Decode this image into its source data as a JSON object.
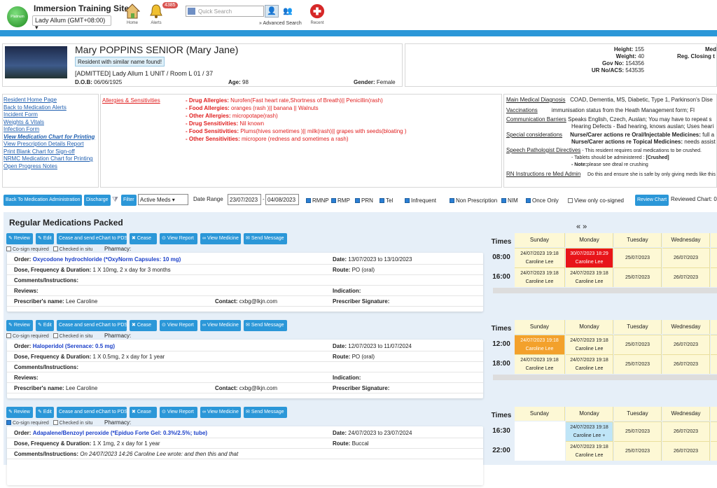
{
  "header": {
    "site_title": "Immersion Training Site",
    "logo_text": "Platinum",
    "timezone": "Lady Allum (GMT+08:00)",
    "nav": {
      "home": "Home",
      "alerts": "Alerts",
      "alerts_badge": "4385",
      "recent": "Recent"
    },
    "search_placeholder": "Quick Search",
    "advanced": "» Advanced Search"
  },
  "resident": {
    "name": "Mary POPPINS SENIOR (Mary Jane)",
    "similar": "Resident with similar name found!",
    "admission": "[ADMITTED] Lady Allum 1 UNIT / Room L 01 / 37",
    "dob_label": "D.O.B:",
    "dob": "06/06/1925",
    "age_label": "Age:",
    "age": "98",
    "gender_label": "Gender:",
    "gender": "Female",
    "height_label": "Height:",
    "height": "155",
    "weight_label": "Weight:",
    "weight": "40",
    "gov_label": "Gov No:",
    "gov": "154356",
    "ur_label": "UR No/ACS:",
    "ur": "543535",
    "r1": "Med",
    "r2": "Reg. Closing t"
  },
  "links": [
    "Resident Home Page",
    "Back to Medication Alerts",
    "Incident Form",
    "Weights & Vitals",
    "Infection Form",
    "View Medication Chart for Printing",
    "View Prescription Details Report",
    "Print Blank Chart for Sign-off",
    "NRMC Medication Chart for Printing",
    "Open Progress Notes"
  ],
  "allergies": {
    "title": "Allergies & Sensitivities",
    "lines": [
      [
        "- Drug Allergies:",
        " Nurofen(Fast heart rate,Shortness of Breath)|| Penicillin(rash)"
      ],
      [
        "- Food Allergies:",
        " oranges (rash )|| banana || Walnuts"
      ],
      [
        "- Other Allergies:",
        " micropotape(rash)"
      ],
      [
        "- Drug Sensitivities:",
        " Nil known"
      ],
      [
        "- Food Sensitivities:",
        " Plums(hives sometimes )|| milk(rash)|| grapes with seeds(bloating )"
      ],
      [
        "- Other Sensitivities:",
        " micropore (redness and sometimes a rash)"
      ]
    ]
  },
  "diagnosis": {
    "main_label": "Main Medical Diagnosis",
    "main": "COAD, Dementia, MS, Diabetic, Type 1, Parkinson's Dise",
    "vacc_label": "Vaccinations",
    "vacc": "immunisation status from the Heath Management form; Fl",
    "comm_label": "Communication Barriers",
    "comm1": "Speaks English, Czech, Auslan; You may have to repeat s",
    "comm2": "Hearing Defects - Bad hearing, knows auslan; Uses heari",
    "spec_label": "Special considerations",
    "spec1": "Nurse/Carer actions re Oral/Injectable Medicines:",
    "spec1b": " full a",
    "spec2": "Nurse/Carer actions re Topical Medicines:",
    "spec2b": " needs assist",
    "speech_label": "Speech Pathologist Directives",
    "speech1": "- This resident requires oral medications to be crushed.",
    "speech2": "- Tablets should be administered : ",
    "speech2b": "[Crushed]",
    "speech3": "- Note:",
    "speech3b": "please see dteal re crushing",
    "rn_label": "RN Instructions re Med Admin",
    "rn": "Do this and ensure she is safe by only giving meds like this"
  },
  "filter": {
    "back": "Back To Medication Administration",
    "discharge": "Discharge",
    "filter": "Filter",
    "select": "Active Meds",
    "date_range": "Date Range",
    "from": "23/07/2023",
    "to": "04/08/2023",
    "options": [
      "RMNP",
      "RMP",
      "PRN",
      "Tel",
      "Infrequent",
      "Non Prescription",
      "NIM",
      "Once Only"
    ],
    "cosigned": "View only co-signed",
    "review_chart": "Review Chart",
    "reviewed": "Reviewed Chart: 0"
  },
  "section_title": "Regular Medications Packed",
  "actions": [
    "Review",
    "Edit",
    "Cease and send eChart to PDS",
    "Cease",
    "View Report",
    "View Medicine",
    "Send Message"
  ],
  "flags": {
    "cosign": "Co-sign required",
    "situ": "Checked in situ",
    "pharmacy": "Pharmacy:"
  },
  "labels": {
    "order": "Order:",
    "dose": "Dose, Frequency & Duration:",
    "comments": "Comments/Instructions:",
    "reviews": "Reviews:",
    "prescriber": "Prescriber's name:",
    "date": "Date:",
    "route": "Route:",
    "indication": "Indication:",
    "contact": "Contact:",
    "signature": "Prescriber Signature:"
  },
  "meds": [
    {
      "order": "Oxycodone hydrochloride (*OxyNorm Capsules: 10 mg)",
      "dose": "1 X 10mg, 2 x day for 3 months",
      "comments": "",
      "date": "13/07/2023 to 13/10/2023",
      "route": "PO (oral)",
      "prescriber": "Lee Caroline",
      "contact": "cxbg@lkjn.com"
    },
    {
      "order": "Haloperidol (Serenace: 0.5 mg)",
      "dose": "1 X 0.5mg, 2 x day for 1 year",
      "comments": "",
      "date": "12/07/2023 to 11/07/2024",
      "route": "PO (oral)",
      "prescriber": "Lee Caroline",
      "contact": "cxbg@lkjn.com"
    },
    {
      "order": "Adapalene/Benzoyl peroxide (*Epiduo Forte Gel: 0.3%/2.5%; tube)",
      "dose": "1 X 1mg, 2 x day for 1 year",
      "comments": "On 24/07/2023 14:26 Caroline Lee wrote: and then this and that",
      "date": "24/07/2023 to 23/07/2024",
      "route": "Buccal",
      "prescriber": "",
      "contact": ""
    }
  ],
  "grid": {
    "nav": "« »",
    "times_label": "Times",
    "days": [
      "Sunday",
      "Monday",
      "Tuesday",
      "Wednesday"
    ],
    "blocks": [
      {
        "times": [
          "08:00",
          "16:00"
        ],
        "cells": [
          [
            "24/07/2023 19:18|Caroline Lee",
            "30/07/2023 18:29|Caroline Lee",
            "25/07/2023",
            "26/07/2023"
          ],
          [
            "24/07/2023 19:18|Caroline Lee",
            "24/07/2023 19:18|Caroline Lee",
            "25/07/2023",
            "26/07/2023"
          ]
        ]
      },
      {
        "times": [
          "12:00",
          "18:00"
        ],
        "cells": [
          [
            "24/07/2023 19:18|Caroline Lee",
            "24/07/2023 19:18|Caroline Lee",
            "25/07/2023",
            "26/07/2023"
          ],
          [
            "24/07/2023 19:18|Caroline Lee",
            "24/07/2023 19:18|Caroline Lee",
            "25/07/2023",
            "26/07/2023"
          ]
        ]
      },
      {
        "times": [
          "16:30",
          "22:00"
        ],
        "cells": [
          [
            "",
            "24/07/2023 19:18|Caroline Lee +",
            "25/07/2023",
            "26/07/2023"
          ],
          [
            "",
            "24/07/2023 19:18|Caroline Lee",
            "25/07/2023",
            "26/07/2023"
          ]
        ]
      }
    ]
  }
}
